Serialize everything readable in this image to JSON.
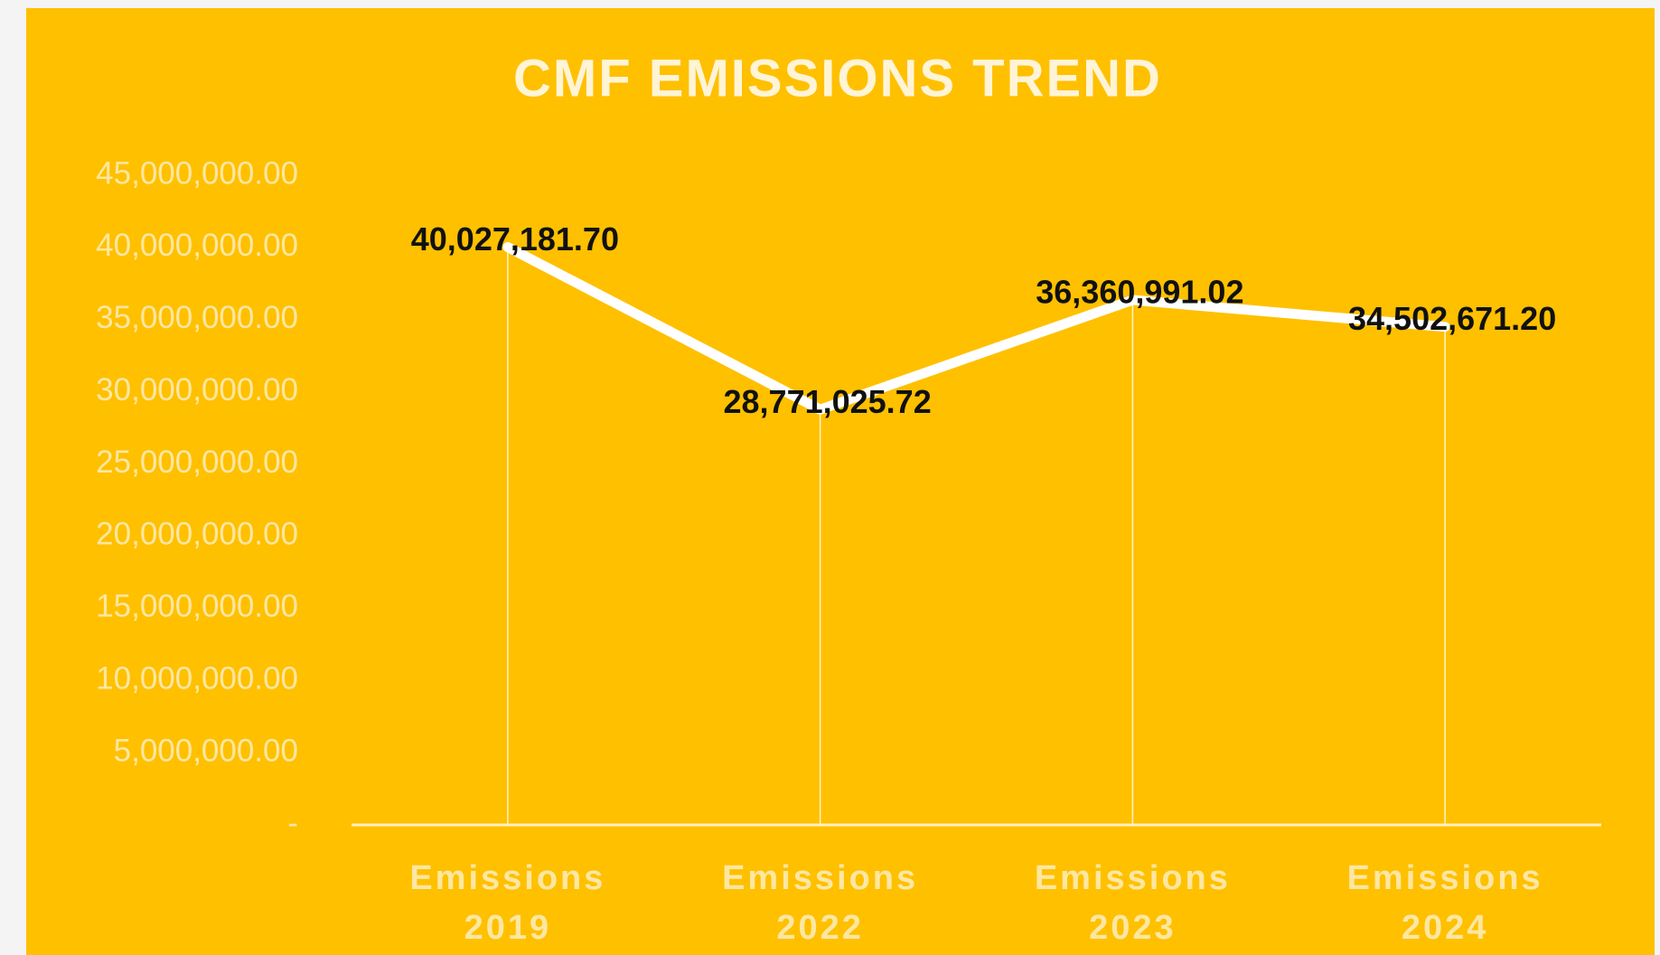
{
  "chart_data": {
    "type": "line",
    "title": "CMF EMISSIONS TREND",
    "categories": [
      "Emissions 2019",
      "Emissions 2022",
      "Emissions 2023",
      "Emissions 2024"
    ],
    "values": [
      40027181.7,
      28771025.72,
      36360991.02,
      34502671.2
    ],
    "value_labels": [
      "40,027,181.70",
      "28,771,025.72",
      "36,360,991.02",
      "34,502,671.20"
    ],
    "color": "#ffffff",
    "ylim": [
      0,
      45000000
    ],
    "yticks": [
      {
        "value": 0,
        "label": "-"
      },
      {
        "value": 5000000,
        "label": "5,000,000.00"
      },
      {
        "value": 10000000,
        "label": "10,000,000.00"
      },
      {
        "value": 15000000,
        "label": "15,000,000.00"
      },
      {
        "value": 20000000,
        "label": "20,000,000.00"
      },
      {
        "value": 25000000,
        "label": "25,000,000.00"
      },
      {
        "value": 30000000,
        "label": "30,000,000.00"
      },
      {
        "value": 35000000,
        "label": "35,000,000.00"
      },
      {
        "value": 40000000,
        "label": "40,000,000.00"
      },
      {
        "value": 45000000,
        "label": "45,000,000.00"
      }
    ],
    "grid": false
  }
}
